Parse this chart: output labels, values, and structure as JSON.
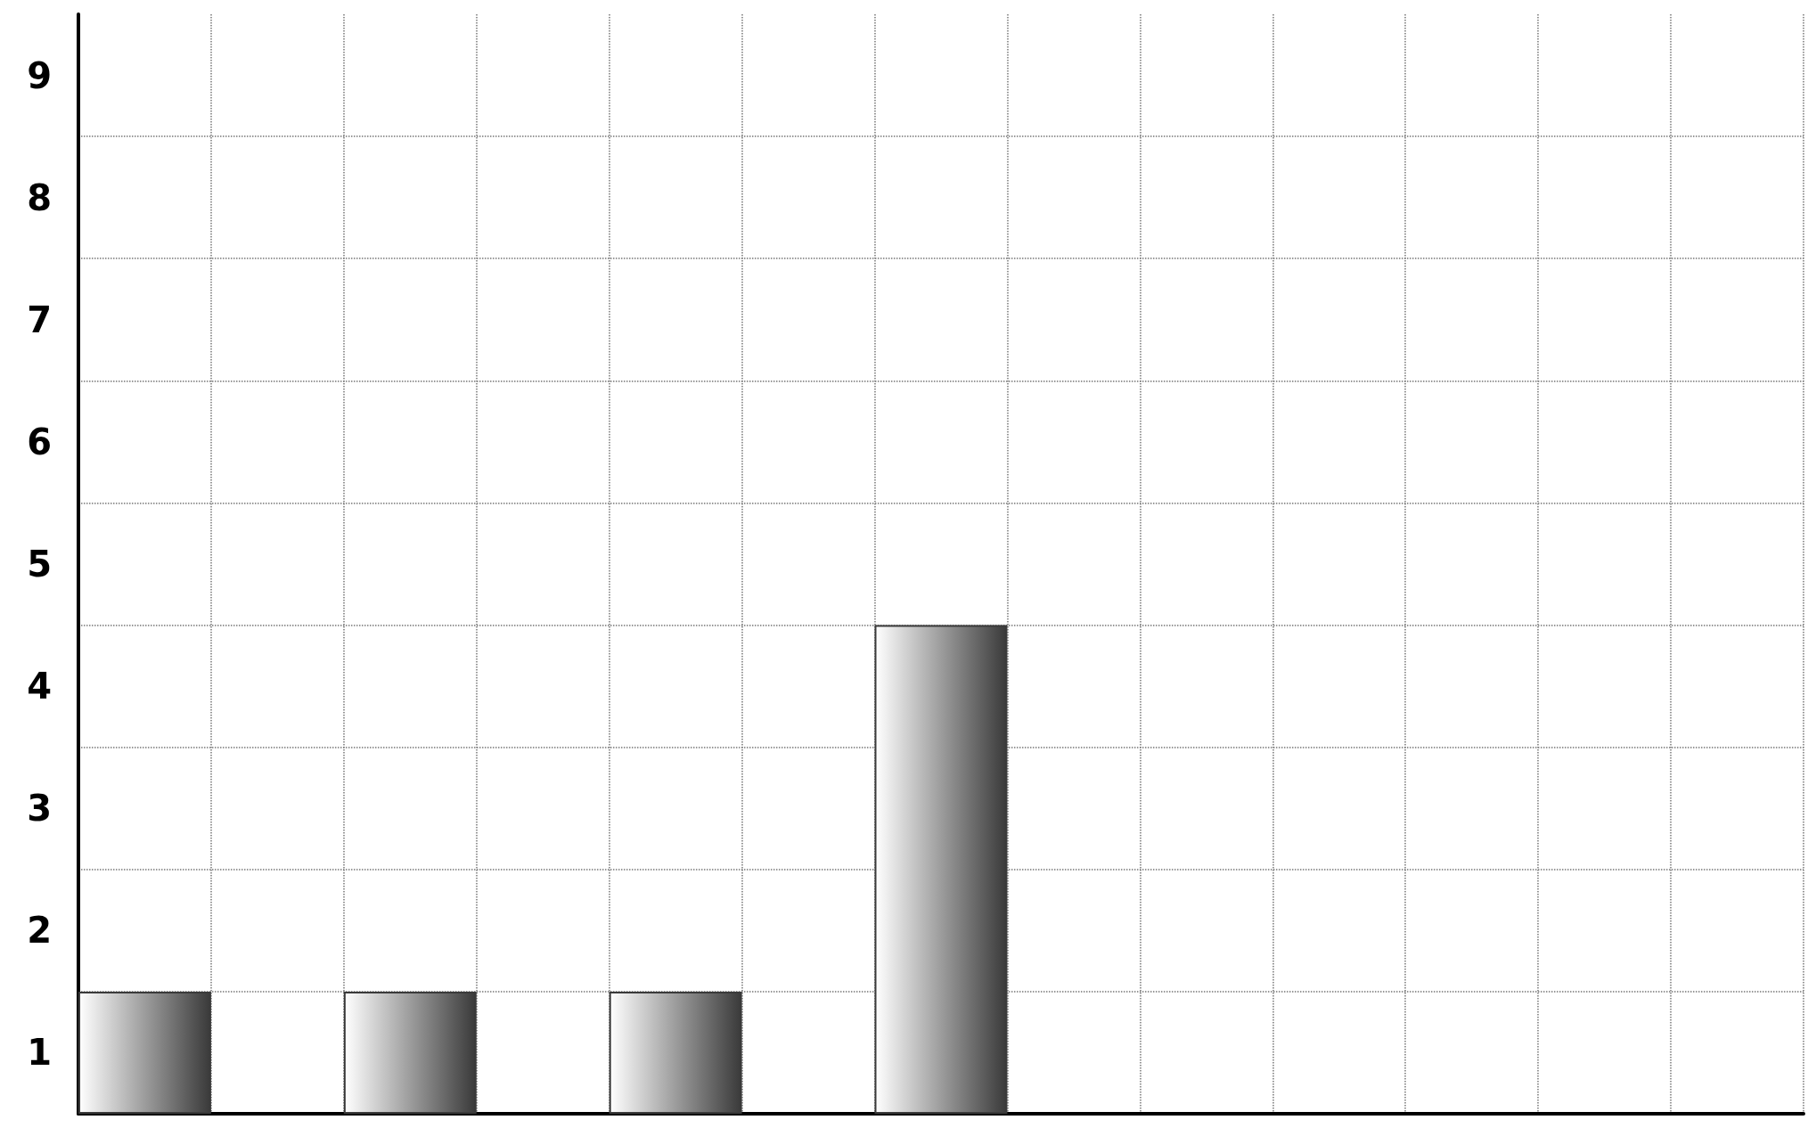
{
  "chart_data": {
    "type": "bar",
    "categories": [
      null,
      null,
      null,
      null,
      null,
      null,
      null,
      null,
      null,
      null,
      null,
      null,
      null
    ],
    "values": [
      1,
      null,
      1,
      null,
      1,
      null,
      4,
      null,
      null,
      null,
      null,
      null,
      null
    ],
    "color": "#3a3a3a",
    "ylim": [
      0,
      9
    ],
    "yticks": [
      {
        "value": 0.5,
        "label": "1"
      },
      {
        "value": 1,
        "label": null
      },
      {
        "value": 1.5,
        "label": "2"
      },
      {
        "value": 2,
        "label": null
      },
      {
        "value": 2.5,
        "label": "3"
      },
      {
        "value": 3,
        "label": null
      },
      {
        "value": 3.5,
        "label": "4"
      },
      {
        "value": 4,
        "label": null
      },
      {
        "value": 4.5,
        "label": "5"
      },
      {
        "value": 5,
        "label": null
      },
      {
        "value": 5.5,
        "label": "6"
      },
      {
        "value": 6,
        "label": null
      },
      {
        "value": 6.5,
        "label": "7"
      },
      {
        "value": 7,
        "label": null
      },
      {
        "value": 7.5,
        "label": "8"
      },
      {
        "value": 8,
        "label": null
      },
      {
        "value": 8.5,
        "label": "9"
      }
    ],
    "grid": true,
    "tick_labels": "y"
  }
}
